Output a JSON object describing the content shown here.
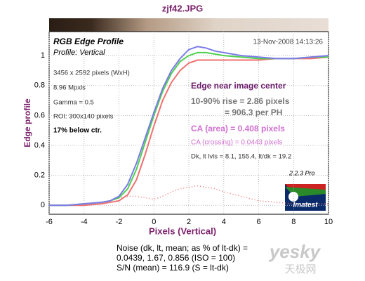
{
  "chart_data": {
    "type": "line",
    "title": "zjf42.JPG",
    "x_label": "Pixels (Vertical)",
    "y_label": "Edge profile",
    "x": [
      -6,
      -5,
      -4,
      -3,
      -2.5,
      -2,
      -1.5,
      -1,
      -0.5,
      0,
      0.5,
      1,
      1.5,
      2,
      2.5,
      3,
      3.5,
      4,
      5,
      6,
      7,
      8,
      9,
      10
    ],
    "series": [
      {
        "color": "#f07070",
        "dashed": true,
        "values": [
          0,
          0,
          0.01,
          0.02,
          0.03,
          0.05,
          0.06,
          0.06,
          0.05,
          0.04,
          0.06,
          0.09,
          0.11,
          0.12,
          0.13,
          0.12,
          0.11,
          0.09,
          0.06,
          0.03,
          0.02,
          0.01,
          0.01,
          0.01
        ]
      },
      {
        "color": "#f07070",
        "values": [
          0,
          0,
          0,
          0.01,
          0.02,
          0.03,
          0.07,
          0.17,
          0.34,
          0.53,
          0.7,
          0.82,
          0.9,
          0.95,
          0.97,
          0.97,
          0.97,
          0.97,
          0.97,
          0.97,
          0.98,
          0.98,
          0.98,
          0.99
        ]
      },
      {
        "color": "#4fd04f",
        "values": [
          0,
          0,
          0.01,
          0.02,
          0.03,
          0.05,
          0.11,
          0.24,
          0.42,
          0.6,
          0.76,
          0.88,
          0.96,
          1.0,
          1.02,
          1.02,
          1.01,
          1.0,
          0.99,
          0.98,
          0.98,
          0.98,
          0.99,
          0.99
        ]
      },
      {
        "color": "#7b7be8",
        "values": [
          0,
          0,
          0.01,
          0.02,
          0.03,
          0.06,
          0.14,
          0.28,
          0.45,
          0.62,
          0.78,
          0.9,
          0.98,
          1.04,
          1.06,
          1.05,
          1.03,
          1.02,
          1.0,
          0.99,
          0.98,
          0.98,
          0.99,
          1.0
        ]
      }
    ],
    "xlim": [
      -6,
      10
    ],
    "ylim": [
      -0.06,
      1.16
    ],
    "xticks": [
      -6,
      -4,
      -2,
      0,
      2,
      4,
      6,
      8,
      10
    ],
    "yticks": [
      0,
      0.2,
      0.4,
      0.6,
      0.8,
      1
    ],
    "grid": true,
    "annotations": [
      "RGB Edge Profile",
      "Profile: Vertical",
      "13-Nov-2008 14:13:26",
      "3456 x 2592 pixels (WxH)",
      "8.96 Mpxls",
      "Gamma = 0.5",
      "ROI: 300x140 pixels",
      "17% below ctr.",
      "Edge near image center",
      "10-90% rise = 2.86 pixels",
      "= 906.3 per PH",
      "CA (area) = 0.408 pixels",
      "CA (crossing) = 0.0443 pixels",
      "Dk, lt lvls = 8.1, 155.4,  lt/dk = 19.2",
      "2.2.3  Pro",
      "Imatest"
    ],
    "footer": [
      "Noise (dk, lt, mean; as % of lt-dk) =",
      "0.0439,  1.67,  0.856  (ISO =  100)",
      "S/N (mean) = 116.9  (S = lt-dk)"
    ],
    "watermark": [
      "yesky",
      "天极网"
    ]
  }
}
